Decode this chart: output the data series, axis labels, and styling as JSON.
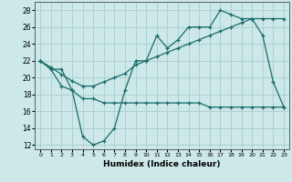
{
  "xlabel": "Humidex (Indice chaleur)",
  "bg_color": "#cce8e8",
  "line_color": "#1a6b6b",
  "grid_color": "#aacccc",
  "xlim": [
    -0.5,
    23.5
  ],
  "ylim": [
    11.5,
    29
  ],
  "xticks": [
    0,
    1,
    2,
    3,
    4,
    5,
    6,
    7,
    8,
    9,
    10,
    11,
    12,
    13,
    14,
    15,
    16,
    17,
    18,
    19,
    20,
    21,
    22,
    23
  ],
  "yticks": [
    12,
    14,
    16,
    18,
    20,
    22,
    24,
    26,
    28
  ],
  "line1_x": [
    0,
    1,
    2,
    3,
    4,
    5,
    6,
    7,
    8,
    9,
    10,
    11,
    12,
    13,
    14,
    15,
    16,
    17,
    18,
    19,
    20,
    21,
    22,
    23
  ],
  "line1_y": [
    22,
    21,
    19,
    18.5,
    13,
    12,
    12.5,
    14,
    18.5,
    22,
    22,
    25,
    23.5,
    24.5,
    26,
    26,
    26,
    28,
    27.5,
    27,
    27,
    25,
    19.5,
    16.5
  ],
  "line2_x": [
    0,
    1,
    2,
    3,
    4,
    5,
    6,
    7,
    8,
    9,
    10,
    11,
    12,
    13,
    14,
    15,
    16,
    17,
    18,
    19,
    20,
    21,
    22,
    23
  ],
  "line2_y": [
    22,
    21,
    21,
    18.5,
    17.5,
    17.5,
    17,
    17,
    17,
    17,
    17,
    17,
    17,
    17,
    17,
    17,
    16.5,
    16.5,
    16.5,
    16.5,
    16.5,
    16.5,
    16.5,
    16.5
  ],
  "line3_x": [
    0,
    1,
    2,
    3,
    4,
    5,
    6,
    7,
    8,
    9,
    10,
    11,
    12,
    13,
    14,
    15,
    16,
    17,
    18,
    19,
    20,
    21,
    22,
    23
  ],
  "line3_y": [
    22,
    21.2,
    20.4,
    19.6,
    19.0,
    19.0,
    19.5,
    20.0,
    20.5,
    21.5,
    22.0,
    22.5,
    23.0,
    23.5,
    24.0,
    24.5,
    25.0,
    25.5,
    26.0,
    26.5,
    27.0,
    27.0,
    27.0,
    27.0
  ]
}
